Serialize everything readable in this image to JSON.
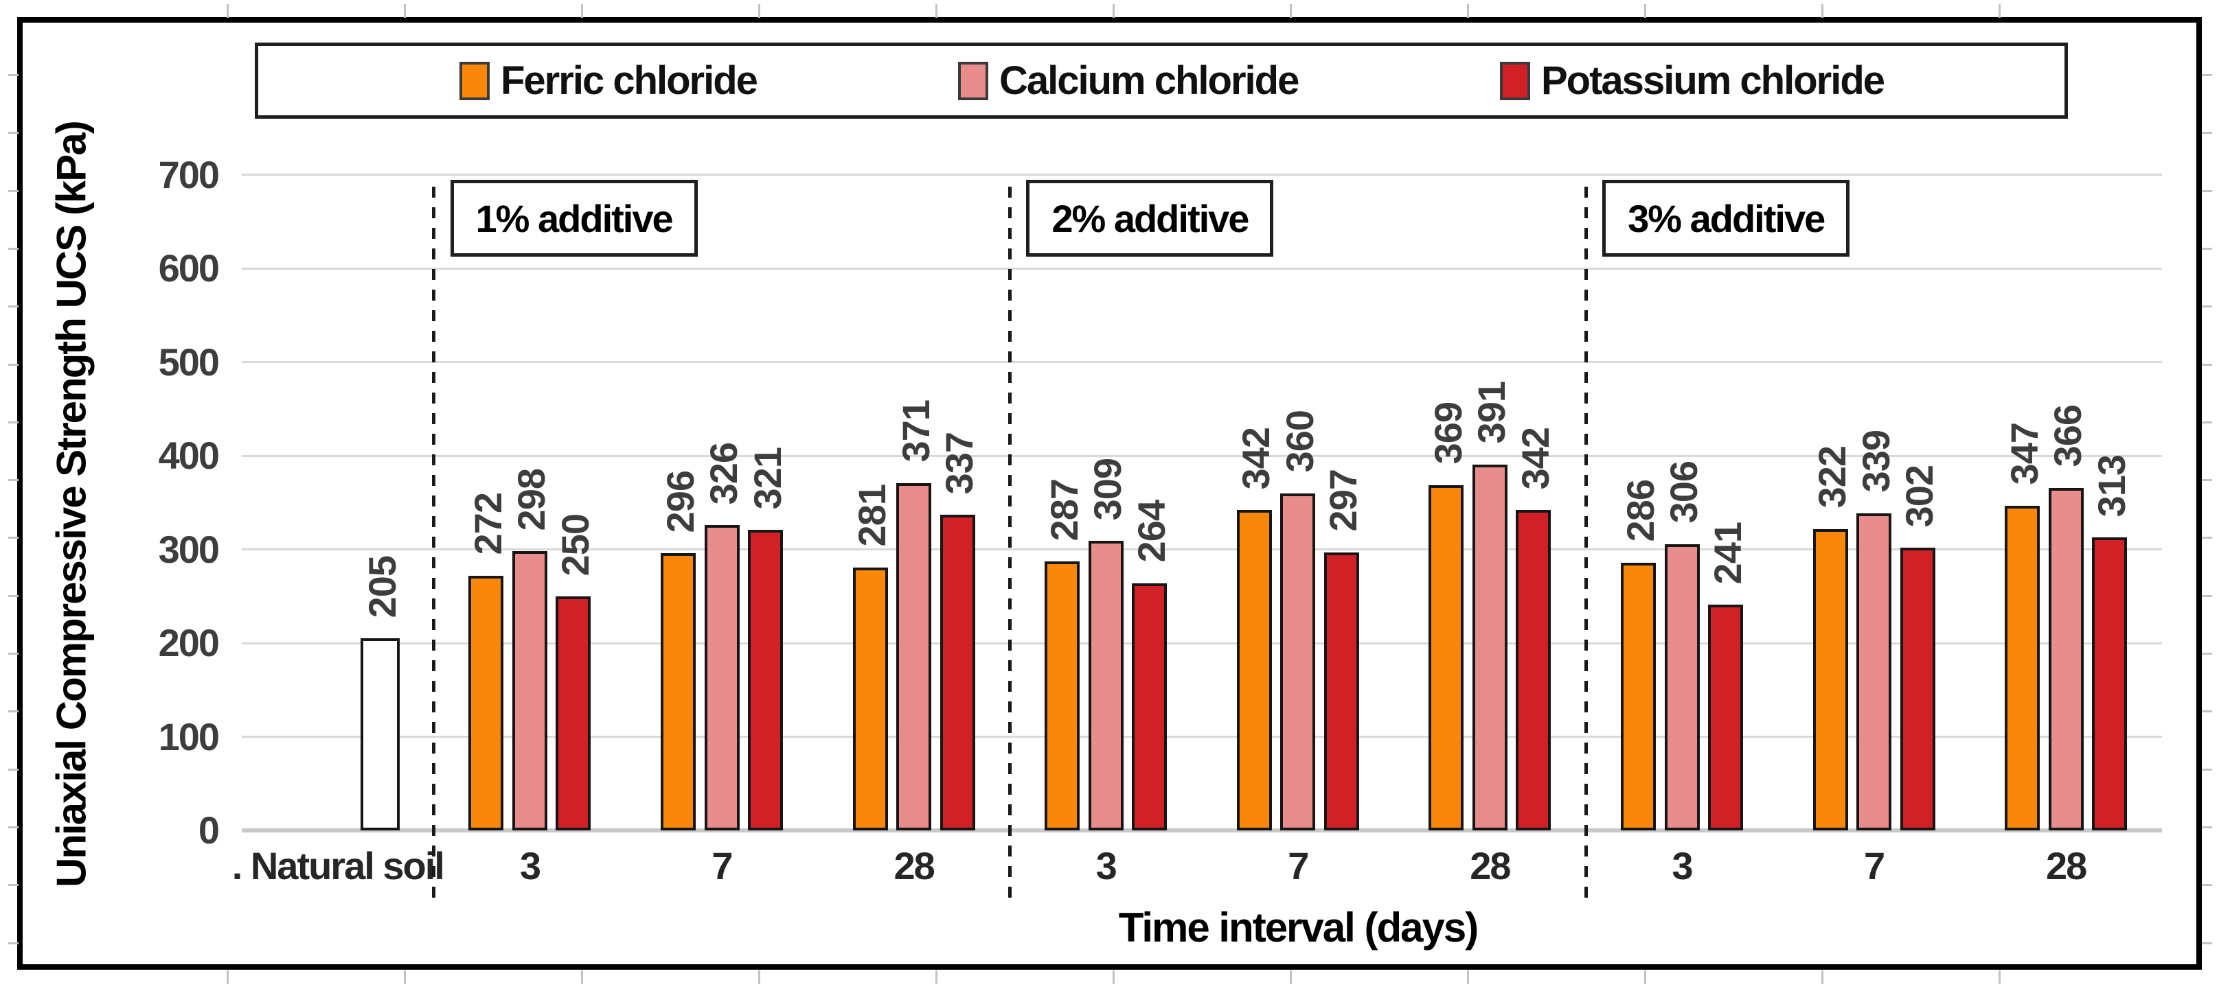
{
  "legend": {
    "items": [
      {
        "label": "Ferric chloride",
        "color": "#F9880A"
      },
      {
        "label": "Calcium chloride",
        "color": "#E98C8C"
      },
      {
        "label": "Potassium chloride",
        "color": "#D12026"
      }
    ]
  },
  "y_axis": {
    "title": "Uniaxial Compressive Strength UCS (kPa)",
    "min": 0,
    "max": 700,
    "tick_step": 100,
    "tick_labels": [
      "0",
      "100",
      "200",
      "300",
      "400",
      "500",
      "600",
      "700"
    ]
  },
  "x_axis": {
    "title": "Time interval (days)"
  },
  "natural_soil": {
    "label": ". Natural soil",
    "value": 205,
    "fill": "#FFFFFF"
  },
  "groups": [
    {
      "label": "1% additive",
      "categories": [
        "3",
        "7",
        "28"
      ],
      "values": [
        [
          272,
          298,
          250
        ],
        [
          296,
          326,
          321
        ],
        [
          281,
          371,
          337
        ]
      ]
    },
    {
      "label": "2% additive",
      "categories": [
        "3",
        "7",
        "28"
      ],
      "values": [
        [
          287,
          309,
          264
        ],
        [
          342,
          360,
          297
        ],
        [
          369,
          391,
          342
        ]
      ]
    },
    {
      "label": "3% additive",
      "categories": [
        "3",
        "7",
        "28"
      ],
      "values": [
        [
          286,
          306,
          241
        ],
        [
          322,
          339,
          302
        ],
        [
          347,
          366,
          313
        ]
      ]
    }
  ],
  "chart_data": {
    "type": "bar",
    "title": "",
    "xlabel": "Time interval (days)",
    "ylabel": "Uniaxial Compressive Strength UCS (kPa)",
    "ylim": [
      0,
      700
    ],
    "grid": true,
    "legend_position": "top",
    "annotations": [
      "1% additive",
      "2% additive",
      "3% additive"
    ],
    "categories": [
      "Natural soil",
      "1% additive - 3",
      "1% additive - 7",
      "1% additive - 28",
      "2% additive - 3",
      "2% additive - 7",
      "2% additive - 28",
      "3% additive - 3",
      "3% additive - 7",
      "3% additive - 28"
    ],
    "series": [
      {
        "name": "Natural soil",
        "color": "#FFFFFF",
        "values": [
          205,
          null,
          null,
          null,
          null,
          null,
          null,
          null,
          null,
          null
        ]
      },
      {
        "name": "Ferric chloride",
        "color": "#F9880A",
        "values": [
          null,
          272,
          296,
          281,
          287,
          342,
          369,
          286,
          322,
          347
        ]
      },
      {
        "name": "Calcium chloride",
        "color": "#E98C8C",
        "values": [
          null,
          298,
          326,
          371,
          309,
          360,
          391,
          306,
          339,
          366
        ]
      },
      {
        "name": "Potassium chloride",
        "color": "#D12026",
        "values": [
          null,
          250,
          321,
          337,
          264,
          297,
          342,
          241,
          302,
          313
        ]
      }
    ]
  }
}
